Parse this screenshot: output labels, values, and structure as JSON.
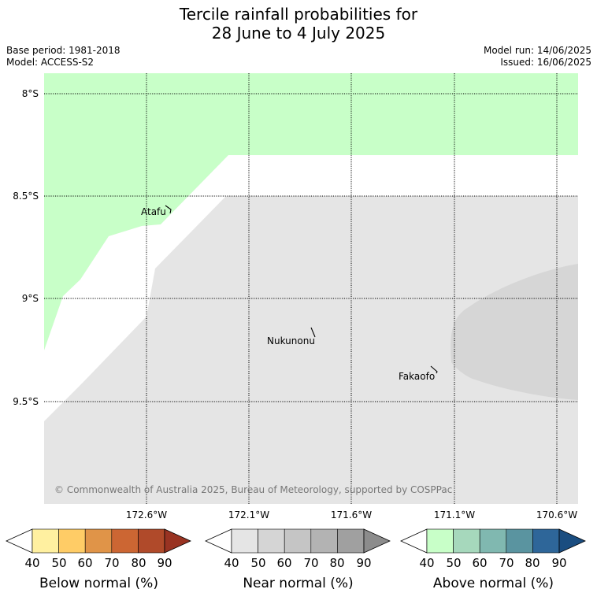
{
  "title": {
    "line1": "Tercile rainfall probabilities for",
    "line2": "28 June to 4 July 2025"
  },
  "info": {
    "base_period": "Base period: 1981-2018",
    "model": "Model: ACCESS-S2",
    "model_run": "Model run: 14/06/2025",
    "issued": "Issued: 16/06/2025"
  },
  "map": {
    "lat_labels": [
      "8°S",
      "8.5°S",
      "9°S",
      "9.5°S"
    ],
    "lon_labels": [
      "172.6°W",
      "172.1°W",
      "171.6°W",
      "171.1°W",
      "170.6°W"
    ],
    "places": [
      {
        "name": "Atafu"
      },
      {
        "name": "Nukunonu"
      },
      {
        "name": "Fakaofo"
      }
    ],
    "copyright": "© Commonwealth of Australia 2025, Bureau of Meteorology, supported by COSPPac"
  },
  "legends": [
    {
      "label": "Below normal (%)",
      "ticks": [
        "40",
        "50",
        "60",
        "70",
        "80",
        "90"
      ],
      "colors": [
        "#ffffff",
        "#fff0a0",
        "#ffcc66",
        "#e09448",
        "#cc6633",
        "#b04a2a",
        "#993322"
      ]
    },
    {
      "label": "Near normal (%)",
      "ticks": [
        "40",
        "50",
        "60",
        "70",
        "80",
        "90"
      ],
      "colors": [
        "#ffffff",
        "#e5e5e5",
        "#d5d5d5",
        "#c5c5c5",
        "#b3b3b3",
        "#a0a0a0",
        "#8c8c8c"
      ]
    },
    {
      "label": "Above normal (%)",
      "ticks": [
        "40",
        "50",
        "60",
        "70",
        "80",
        "90"
      ],
      "colors": [
        "#ffffff",
        "#c8ffc8",
        "#a6d8bc",
        "#80b8b0",
        "#5a94a0",
        "#2e6699",
        "#1a4d80"
      ]
    }
  ],
  "colors": {
    "above_40": "#c8ffc8",
    "near_40": "#e5e5e5",
    "near_50": "#d6d6d6",
    "no_signal": "#ffffff"
  }
}
